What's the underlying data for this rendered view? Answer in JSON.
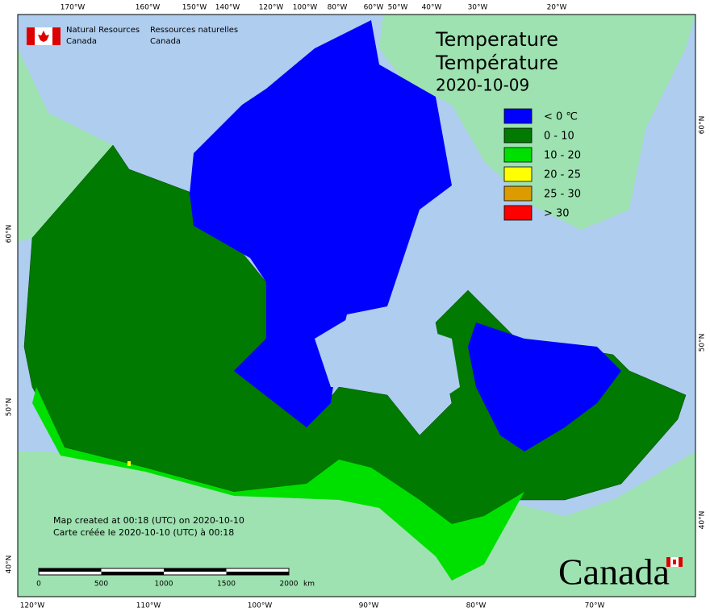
{
  "agency": {
    "en": [
      "Natural Resources",
      "Canada"
    ],
    "fr": [
      "Ressources naturelles",
      "Canada"
    ]
  },
  "title": {
    "en": "Temperature",
    "fr": "Température",
    "date": "2020-10-09"
  },
  "legend": [
    {
      "label": "< 0 ℃",
      "color": "#0000ff"
    },
    {
      "label": "0 - 10",
      "color": "#007a00"
    },
    {
      "label": "10 - 20",
      "color": "#00e000"
    },
    {
      "label": "20 - 25",
      "color": "#ffff00"
    },
    {
      "label": "25 - 30",
      "color": "#dc9c00"
    },
    {
      "label": "> 30",
      "color": "#ff0000"
    }
  ],
  "top_axis_labels": [
    "170°W",
    "160°W",
    "150°W",
    "140°W",
    "120°W",
    "100°W",
    "80°W",
    "60°W",
    "50°W",
    "40°W",
    "30°W",
    "20°W"
  ],
  "bottom_axis_labels": [
    "120°W",
    "110°W",
    "100°W",
    "90°W",
    "80°W",
    "70°W"
  ],
  "left_axis_labels": [
    "60°N",
    "50°N",
    "40°N"
  ],
  "right_axis_labels": [
    "60°N",
    "50°N",
    "40°N"
  ],
  "credits": [
    "Map created at 00:18 (UTC) on 2020-10-10",
    "Carte créée le 2020-10-10 (UTC) à 00:18"
  ],
  "scale_bar": {
    "labels": [
      "0",
      "500",
      "1000",
      "1500",
      "2000"
    ],
    "unit": "km"
  },
  "wordmark": "Canada"
}
